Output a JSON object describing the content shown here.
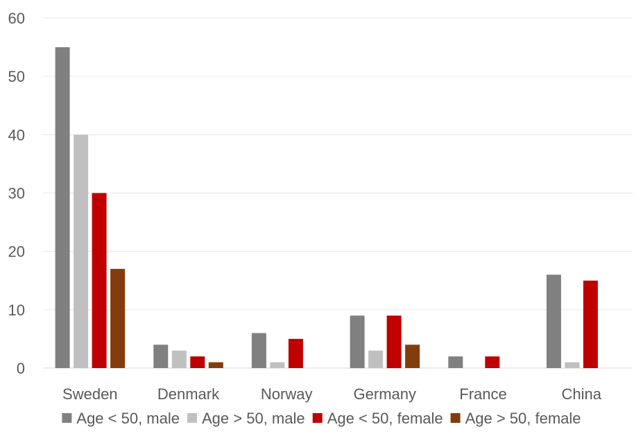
{
  "chart_data": {
    "type": "bar",
    "title": "",
    "xlabel": "",
    "ylabel": "",
    "ylim": [
      0,
      60
    ],
    "yticks": [
      0,
      10,
      20,
      30,
      40,
      50,
      60
    ],
    "grid": true,
    "legend_position": "bottom",
    "categories": [
      "Sweden",
      "Denmark",
      "Norway",
      "Germany",
      "France",
      "China"
    ],
    "series": [
      {
        "name": "Age < 50, male",
        "color": "#808080",
        "values": [
          55,
          4,
          6,
          9,
          2,
          16
        ]
      },
      {
        "name": "Age > 50, male",
        "color": "#c0c0c0",
        "values": [
          40,
          3,
          1,
          3,
          0,
          1
        ]
      },
      {
        "name": "Age < 50, female",
        "color": "#c00000",
        "values": [
          30,
          2,
          5,
          9,
          2,
          15
        ]
      },
      {
        "name": "Age > 50, female",
        "color": "#843c0c",
        "values": [
          17,
          1,
          0,
          4,
          0,
          0
        ]
      }
    ]
  }
}
